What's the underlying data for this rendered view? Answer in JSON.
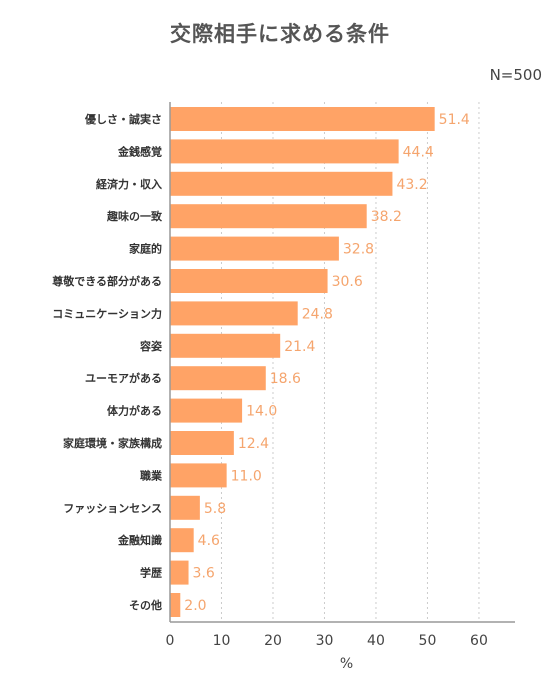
{
  "title": "交際相手に求める条件",
  "sample_size": "N=500",
  "chart_data": {
    "type": "bar",
    "orientation": "horizontal",
    "title": "交際相手に求める条件",
    "xlabel": "%",
    "ylabel": "",
    "xlim": [
      0,
      67
    ],
    "xticks": [
      0,
      10,
      20,
      30,
      40,
      50,
      60
    ],
    "grid": "vertical dotted",
    "bar_color": "#ffa366",
    "value_label_color": "#f5a56e",
    "categories": [
      "優しさ・誠実さ",
      "金銭感覚",
      "経済力・収入",
      "趣味の一致",
      "家庭的",
      "尊敬できる部分がある",
      "コミュニケーション力",
      "容姿",
      "ユーモアがある",
      "体力がある",
      "家庭環境・家族構成",
      "職業",
      "ファッションセンス",
      "金融知識",
      "学歴",
      "その他"
    ],
    "values": [
      51.4,
      44.4,
      43.2,
      38.2,
      32.8,
      30.6,
      24.8,
      21.4,
      18.6,
      14.0,
      12.4,
      11.0,
      5.8,
      4.6,
      3.6,
      2.0
    ],
    "value_labels": [
      "51.4",
      "44.4",
      "43.2",
      "38.2",
      "32.8",
      "30.6",
      "24.8",
      "21.4",
      "18.6",
      "14.0",
      "12.4",
      "11.0",
      "5.8",
      "4.6",
      "3.6",
      "2.0"
    ]
  }
}
